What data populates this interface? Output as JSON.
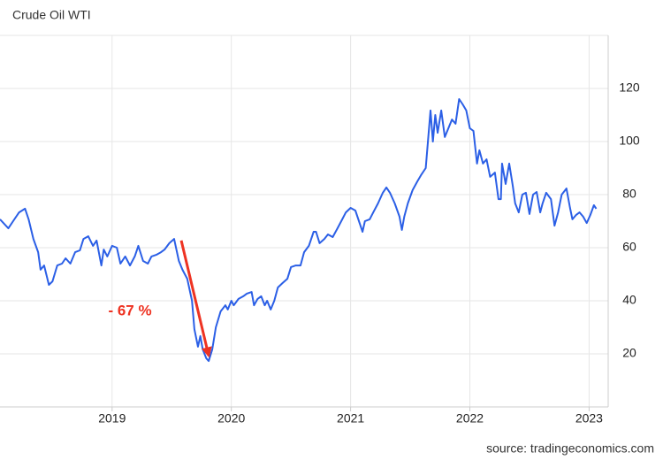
{
  "chart_data": {
    "type": "line",
    "title": "Crude Oil WTI",
    "source": "source: tradingeconomics.com",
    "color": "#2b5fe6",
    "grid": true,
    "xlim": [
      2018.06,
      2023.16
    ],
    "xticks": [
      2019,
      2020,
      2021,
      2022,
      2023
    ],
    "ylim": [
      0,
      140
    ],
    "yticks": [
      20,
      40,
      60,
      80,
      100,
      120
    ],
    "x": [
      2018.06,
      2018.13,
      2018.17,
      2018.22,
      2018.27,
      2018.3,
      2018.34,
      2018.38,
      2018.4,
      2018.43,
      2018.47,
      2018.5,
      2018.54,
      2018.58,
      2018.61,
      2018.65,
      2018.69,
      2018.73,
      2018.76,
      2018.8,
      2018.84,
      2018.87,
      2018.91,
      2018.93,
      2018.96,
      2019.0,
      2019.04,
      2019.07,
      2019.11,
      2019.15,
      2019.19,
      2019.22,
      2019.26,
      2019.3,
      2019.33,
      2019.37,
      2019.41,
      2019.44,
      2019.48,
      2019.52,
      2019.56,
      2019.59,
      2019.63,
      2019.67,
      2019.69,
      2019.72,
      2019.74,
      2019.76,
      2019.79,
      2019.81,
      2019.84,
      2019.87,
      2019.91,
      2019.95,
      2019.97,
      2020.0,
      2020.02,
      2020.06,
      2020.1,
      2020.13,
      2020.17,
      2020.19,
      2020.22,
      2020.25,
      2020.28,
      2020.3,
      2020.33,
      2020.36,
      2020.39,
      2020.43,
      2020.47,
      2020.5,
      2020.54,
      2020.58,
      2020.61,
      2020.65,
      2020.69,
      2020.71,
      2020.74,
      2020.78,
      2020.81,
      2020.85,
      2020.89,
      2020.93,
      2020.96,
      2021.0,
      2021.04,
      2021.07,
      2021.1,
      2021.12,
      2021.16,
      2021.19,
      2021.23,
      2021.27,
      2021.3,
      2021.33,
      2021.37,
      2021.41,
      2021.43,
      2021.45,
      2021.48,
      2021.52,
      2021.56,
      2021.59,
      2021.63,
      2021.67,
      2021.69,
      2021.71,
      2021.73,
      2021.76,
      2021.79,
      2021.82,
      2021.85,
      2021.88,
      2021.91,
      2021.94,
      2021.97,
      2022.0,
      2022.03,
      2022.06,
      2022.08,
      2022.11,
      2022.14,
      2022.17,
      2022.21,
      2022.24,
      2022.26,
      2022.27,
      2022.3,
      2022.33,
      2022.36,
      2022.38,
      2022.41,
      2022.44,
      2022.47,
      2022.5,
      2022.53,
      2022.56,
      2022.59,
      2022.61,
      2022.64,
      2022.68,
      2022.71,
      2022.74,
      2022.77,
      2022.81,
      2022.84,
      2022.86,
      2022.89,
      2022.92,
      2022.95,
      2022.98,
      2023.01,
      2023.04,
      2023.06
    ],
    "values": [
      70.7,
      67.3,
      70,
      73.3,
      74.7,
      70.7,
      63.3,
      58.3,
      51.7,
      53.3,
      46,
      47.3,
      53.3,
      54,
      56,
      54,
      58.3,
      59,
      63.3,
      64.3,
      60.7,
      62.7,
      53.3,
      59.3,
      56.7,
      60.7,
      60,
      54,
      56.7,
      53.3,
      56.7,
      60.7,
      55,
      54,
      56.7,
      57.3,
      58.3,
      59.3,
      61.7,
      63.3,
      55,
      51.7,
      48.3,
      40,
      29.3,
      22.7,
      26.7,
      21.7,
      18.3,
      17.3,
      21.7,
      30,
      36,
      38.3,
      36.7,
      40,
      38.3,
      40.7,
      41.7,
      42.7,
      43.3,
      38.3,
      40.7,
      41.7,
      38.3,
      40,
      36.7,
      40,
      45,
      46.7,
      48.3,
      52.7,
      53.3,
      53.3,
      58.3,
      60.7,
      66,
      66,
      61.7,
      63.3,
      65,
      64,
      67.3,
      70.7,
      73.3,
      75,
      74,
      70,
      66,
      70,
      70.7,
      73.3,
      76.7,
      80.7,
      82.7,
      80.7,
      76.7,
      71.7,
      66.7,
      71.7,
      76.7,
      81.7,
      85,
      87.3,
      90,
      111.7,
      100,
      110,
      103.3,
      111.7,
      101.7,
      105,
      108.3,
      106.7,
      116,
      114,
      111.7,
      105,
      104,
      91.7,
      96.7,
      91.7,
      93.3,
      86.7,
      88.3,
      78.3,
      78.3,
      91.7,
      84,
      91.7,
      83.3,
      76.7,
      73.3,
      80,
      80.7,
      72.7,
      80,
      81,
      73.3,
      76.7,
      80.7,
      78.3,
      68.3,
      73.3,
      80,
      82.3,
      75,
      70.7,
      72.3,
      73.3,
      71.7,
      69.3,
      72.3,
      76,
      74.7
    ],
    "annotation": {
      "text": "- 67 %",
      "color": "#ee3322",
      "x": [
        2019.58,
        2019.81
      ],
      "y": [
        62.7,
        19.3
      ]
    }
  }
}
